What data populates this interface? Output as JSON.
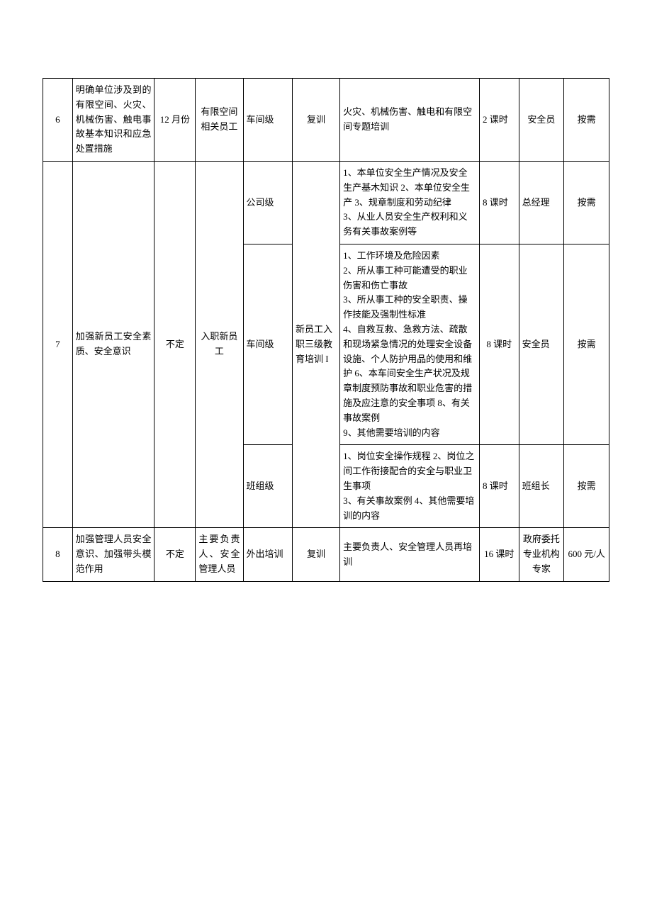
{
  "table": {
    "border_color": "#000000",
    "background_color": "#ffffff",
    "font_size": 13,
    "rows": [
      {
        "num": "6",
        "goal": "明确单位涉及到的有限空间、火灾、机械伤害、触电事故基本知识和应急处置措施",
        "time": "12 月份",
        "target": "有限空间相关员工",
        "level": "车间级",
        "type": "复训",
        "content": "火灾、机械伤害、触电和有限空间专题培训",
        "hours": "2 课时",
        "teacher": "安全员",
        "cost": "按需"
      },
      {
        "num": "7",
        "goal": "加强新员工安全素质、安全意识",
        "time": "不定",
        "target": "入职新员工",
        "type": "新员工入职三级教育培训 I",
        "sub": [
          {
            "level": "公司级",
            "content": "1、本单位安全生产情况及安全生产基木知识 2、本单位安全生产 3、规章制度和劳动纪律\n3、从业人员安全生产权利和义务有关事故案例等",
            "hours": "8 课时",
            "teacher": "总经理",
            "cost": "按需"
          },
          {
            "level": "车间级",
            "content": "1、工作环境及危险因素\n2、所从事工种可能遭受的职业伤害和伤亡事故\n3、所从事工种的安全职责、操作技能及强制性标准\n4、自救互救、急救方法、疏散和现场紧急情况的处理安全设备设施、个人防护用品的使用和维护 6、本车间安全生产状况及规章制度预防事故和职业危害的措施及应注意的安全事项 8、有关事故案例\n9、其他需要培训的内容",
            "hours": "8 课时",
            "teacher": "安全员",
            "cost": "按需"
          },
          {
            "level": "班组级",
            "content": "1、岗位安全操作规程 2、岗位之间工作衔接配合的安全与职业卫生事项\n3、有关事故案例 4、其他需要培训的内容",
            "hours": "8 课时",
            "teacher": "班组长",
            "cost": "按需"
          }
        ]
      },
      {
        "num": "8",
        "goal": "加强管理人员安全意识、加强带头模范作用",
        "time": "不定",
        "target": "主要负责人、安全管理人员",
        "level": "外出培训",
        "type": "复训",
        "content": "主要负责人、安全管理人员再培训",
        "hours": "16 课时",
        "teacher": "政府委托专业机构专家",
        "cost": "600 元/人"
      }
    ]
  }
}
